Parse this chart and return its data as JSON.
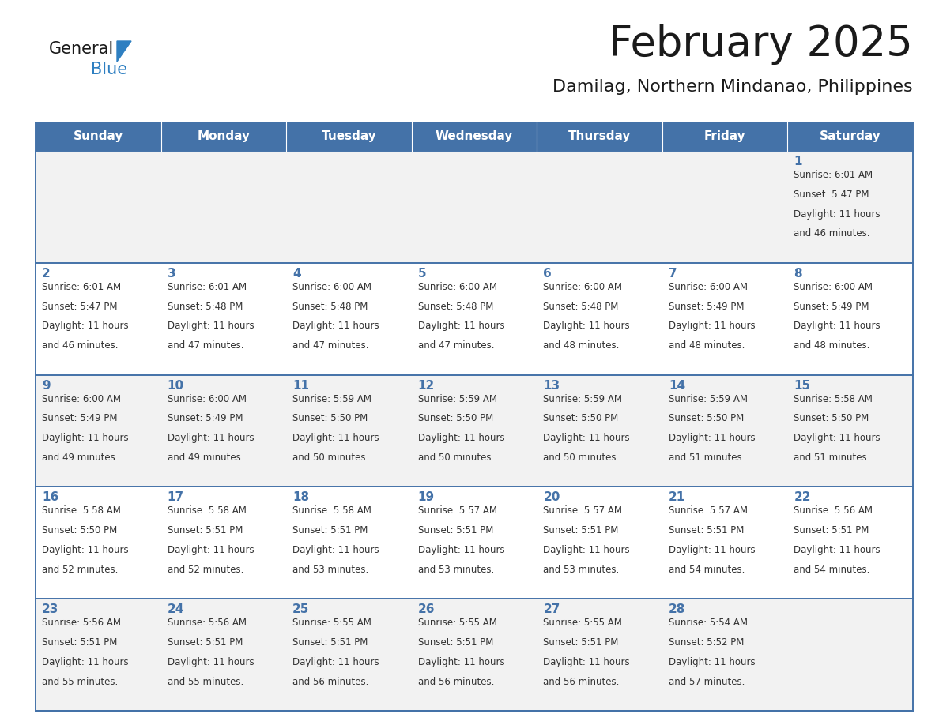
{
  "title": "February 2025",
  "subtitle": "Damilag, Northern Mindanao, Philippines",
  "header_bg": "#4472A8",
  "header_text_color": "#FFFFFF",
  "cell_bg_odd": "#F2F2F2",
  "cell_bg_even": "#FFFFFF",
  "day_text_color": "#4472A8",
  "info_text_color": "#333333",
  "border_color": "#4472A8",
  "days_of_week": [
    "Sunday",
    "Monday",
    "Tuesday",
    "Wednesday",
    "Thursday",
    "Friday",
    "Saturday"
  ],
  "weeks": [
    [
      {
        "day": null,
        "sunrise": null,
        "sunset": null,
        "daylight_hours": null,
        "daylight_minutes": null
      },
      {
        "day": null,
        "sunrise": null,
        "sunset": null,
        "daylight_hours": null,
        "daylight_minutes": null
      },
      {
        "day": null,
        "sunrise": null,
        "sunset": null,
        "daylight_hours": null,
        "daylight_minutes": null
      },
      {
        "day": null,
        "sunrise": null,
        "sunset": null,
        "daylight_hours": null,
        "daylight_minutes": null
      },
      {
        "day": null,
        "sunrise": null,
        "sunset": null,
        "daylight_hours": null,
        "daylight_minutes": null
      },
      {
        "day": null,
        "sunrise": null,
        "sunset": null,
        "daylight_hours": null,
        "daylight_minutes": null
      },
      {
        "day": 1,
        "sunrise": "6:01 AM",
        "sunset": "5:47 PM",
        "daylight_hours": 11,
        "daylight_minutes": 46
      }
    ],
    [
      {
        "day": 2,
        "sunrise": "6:01 AM",
        "sunset": "5:47 PM",
        "daylight_hours": 11,
        "daylight_minutes": 46
      },
      {
        "day": 3,
        "sunrise": "6:01 AM",
        "sunset": "5:48 PM",
        "daylight_hours": 11,
        "daylight_minutes": 47
      },
      {
        "day": 4,
        "sunrise": "6:00 AM",
        "sunset": "5:48 PM",
        "daylight_hours": 11,
        "daylight_minutes": 47
      },
      {
        "day": 5,
        "sunrise": "6:00 AM",
        "sunset": "5:48 PM",
        "daylight_hours": 11,
        "daylight_minutes": 47
      },
      {
        "day": 6,
        "sunrise": "6:00 AM",
        "sunset": "5:48 PM",
        "daylight_hours": 11,
        "daylight_minutes": 48
      },
      {
        "day": 7,
        "sunrise": "6:00 AM",
        "sunset": "5:49 PM",
        "daylight_hours": 11,
        "daylight_minutes": 48
      },
      {
        "day": 8,
        "sunrise": "6:00 AM",
        "sunset": "5:49 PM",
        "daylight_hours": 11,
        "daylight_minutes": 48
      }
    ],
    [
      {
        "day": 9,
        "sunrise": "6:00 AM",
        "sunset": "5:49 PM",
        "daylight_hours": 11,
        "daylight_minutes": 49
      },
      {
        "day": 10,
        "sunrise": "6:00 AM",
        "sunset": "5:49 PM",
        "daylight_hours": 11,
        "daylight_minutes": 49
      },
      {
        "day": 11,
        "sunrise": "5:59 AM",
        "sunset": "5:50 PM",
        "daylight_hours": 11,
        "daylight_minutes": 50
      },
      {
        "day": 12,
        "sunrise": "5:59 AM",
        "sunset": "5:50 PM",
        "daylight_hours": 11,
        "daylight_minutes": 50
      },
      {
        "day": 13,
        "sunrise": "5:59 AM",
        "sunset": "5:50 PM",
        "daylight_hours": 11,
        "daylight_minutes": 50
      },
      {
        "day": 14,
        "sunrise": "5:59 AM",
        "sunset": "5:50 PM",
        "daylight_hours": 11,
        "daylight_minutes": 51
      },
      {
        "day": 15,
        "sunrise": "5:58 AM",
        "sunset": "5:50 PM",
        "daylight_hours": 11,
        "daylight_minutes": 51
      }
    ],
    [
      {
        "day": 16,
        "sunrise": "5:58 AM",
        "sunset": "5:50 PM",
        "daylight_hours": 11,
        "daylight_minutes": 52
      },
      {
        "day": 17,
        "sunrise": "5:58 AM",
        "sunset": "5:51 PM",
        "daylight_hours": 11,
        "daylight_minutes": 52
      },
      {
        "day": 18,
        "sunrise": "5:58 AM",
        "sunset": "5:51 PM",
        "daylight_hours": 11,
        "daylight_minutes": 53
      },
      {
        "day": 19,
        "sunrise": "5:57 AM",
        "sunset": "5:51 PM",
        "daylight_hours": 11,
        "daylight_minutes": 53
      },
      {
        "day": 20,
        "sunrise": "5:57 AM",
        "sunset": "5:51 PM",
        "daylight_hours": 11,
        "daylight_minutes": 53
      },
      {
        "day": 21,
        "sunrise": "5:57 AM",
        "sunset": "5:51 PM",
        "daylight_hours": 11,
        "daylight_minutes": 54
      },
      {
        "day": 22,
        "sunrise": "5:56 AM",
        "sunset": "5:51 PM",
        "daylight_hours": 11,
        "daylight_minutes": 54
      }
    ],
    [
      {
        "day": 23,
        "sunrise": "5:56 AM",
        "sunset": "5:51 PM",
        "daylight_hours": 11,
        "daylight_minutes": 55
      },
      {
        "day": 24,
        "sunrise": "5:56 AM",
        "sunset": "5:51 PM",
        "daylight_hours": 11,
        "daylight_minutes": 55
      },
      {
        "day": 25,
        "sunrise": "5:55 AM",
        "sunset": "5:51 PM",
        "daylight_hours": 11,
        "daylight_minutes": 56
      },
      {
        "day": 26,
        "sunrise": "5:55 AM",
        "sunset": "5:51 PM",
        "daylight_hours": 11,
        "daylight_minutes": 56
      },
      {
        "day": 27,
        "sunrise": "5:55 AM",
        "sunset": "5:51 PM",
        "daylight_hours": 11,
        "daylight_minutes": 56
      },
      {
        "day": 28,
        "sunrise": "5:54 AM",
        "sunset": "5:52 PM",
        "daylight_hours": 11,
        "daylight_minutes": 57
      },
      {
        "day": null,
        "sunrise": null,
        "sunset": null,
        "daylight_hours": null,
        "daylight_minutes": null
      }
    ]
  ],
  "logo_general_color": "#1a1a1a",
  "logo_blue_color": "#2e7fc1"
}
